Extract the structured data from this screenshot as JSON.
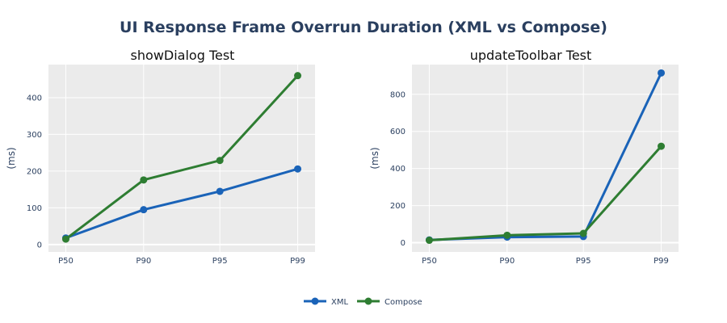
{
  "title": "UI Response Frame Overrun Duration (XML vs Compose)",
  "colors": {
    "xml": "#1a63b8",
    "compose": "#2e7d32",
    "plot_bg": "#ebebeb",
    "grid": "#ffffff"
  },
  "legend": {
    "placement": "bottom-center"
  },
  "chart_data": [
    {
      "type": "line",
      "title": "showDialog Test",
      "ylabel": "(ms)",
      "categories": [
        "P50",
        "P90",
        "P95",
        "P99"
      ],
      "ylim": [
        -20,
        490
      ],
      "yticks": [
        0,
        100,
        200,
        300,
        400
      ],
      "grid": true,
      "series": [
        {
          "name": "XML",
          "color": "#1a63b8",
          "values": [
            18,
            95,
            145,
            206
          ]
        },
        {
          "name": "Compose",
          "color": "#2e7d32",
          "values": [
            15,
            176,
            229,
            460
          ]
        }
      ]
    },
    {
      "type": "line",
      "title": "updateToolbar Test",
      "ylabel": "(ms)",
      "categories": [
        "P50",
        "P90",
        "P95",
        "P99"
      ],
      "ylim": [
        -50,
        960
      ],
      "yticks": [
        0,
        200,
        400,
        600,
        800
      ],
      "grid": true,
      "series": [
        {
          "name": "XML",
          "color": "#1a63b8",
          "values": [
            15,
            30,
            33,
            915
          ]
        },
        {
          "name": "Compose",
          "color": "#2e7d32",
          "values": [
            13,
            40,
            50,
            520
          ]
        }
      ]
    }
  ]
}
